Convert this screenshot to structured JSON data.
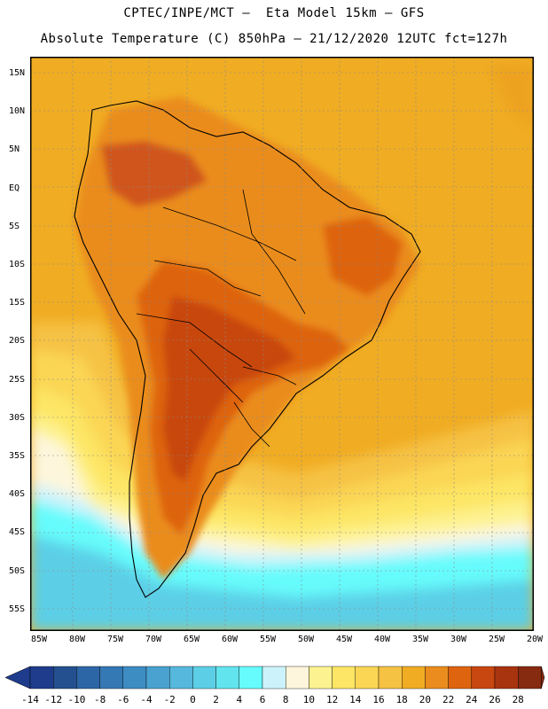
{
  "header": {
    "line1": "CPTEC/INPE/MCT –  Eta Model 15km – GFS",
    "line2": "Absolute Temperature (C) 850hPa – 21/12/2020 12UTC fct=127h"
  },
  "axes": {
    "lat_labels": [
      "15N",
      "10N",
      "5N",
      "EQ",
      "5S",
      "10S",
      "15S",
      "20S",
      "25S",
      "30S",
      "35S",
      "40S",
      "45S",
      "50S",
      "55S"
    ],
    "lon_labels": [
      "85W",
      "80W",
      "75W",
      "70W",
      "65W",
      "60W",
      "55W",
      "50W",
      "45W",
      "40W",
      "35W",
      "30W",
      "25W",
      "20W"
    ]
  },
  "colorbar": {
    "labels": [
      "-14",
      "-12",
      "-10",
      "-8",
      "-6",
      "-4",
      "-2",
      "0",
      "2",
      "4",
      "6",
      "8",
      "10",
      "12",
      "14",
      "16",
      "18",
      "20",
      "22",
      "24",
      "26",
      "28"
    ],
    "colors": [
      "#1f3c8c",
      "#24508f",
      "#2d66a6",
      "#3478b4",
      "#3d8cc2",
      "#4aa2d0",
      "#55b8dc",
      "#5ccfe6",
      "#62e4ee",
      "#66fbfc",
      "#ccf3fb",
      "#fdf6dc",
      "#fdf290",
      "#fde665",
      "#fbd654",
      "#f6c244",
      "#f0ac23",
      "#ea8c1e",
      "#de6410",
      "#c8460f",
      "#a8340f",
      "#862a10"
    ]
  },
  "map": {
    "region": "South America and surrounding oceans",
    "variable": "Absolute Temperature 850hPa",
    "units": "C"
  }
}
